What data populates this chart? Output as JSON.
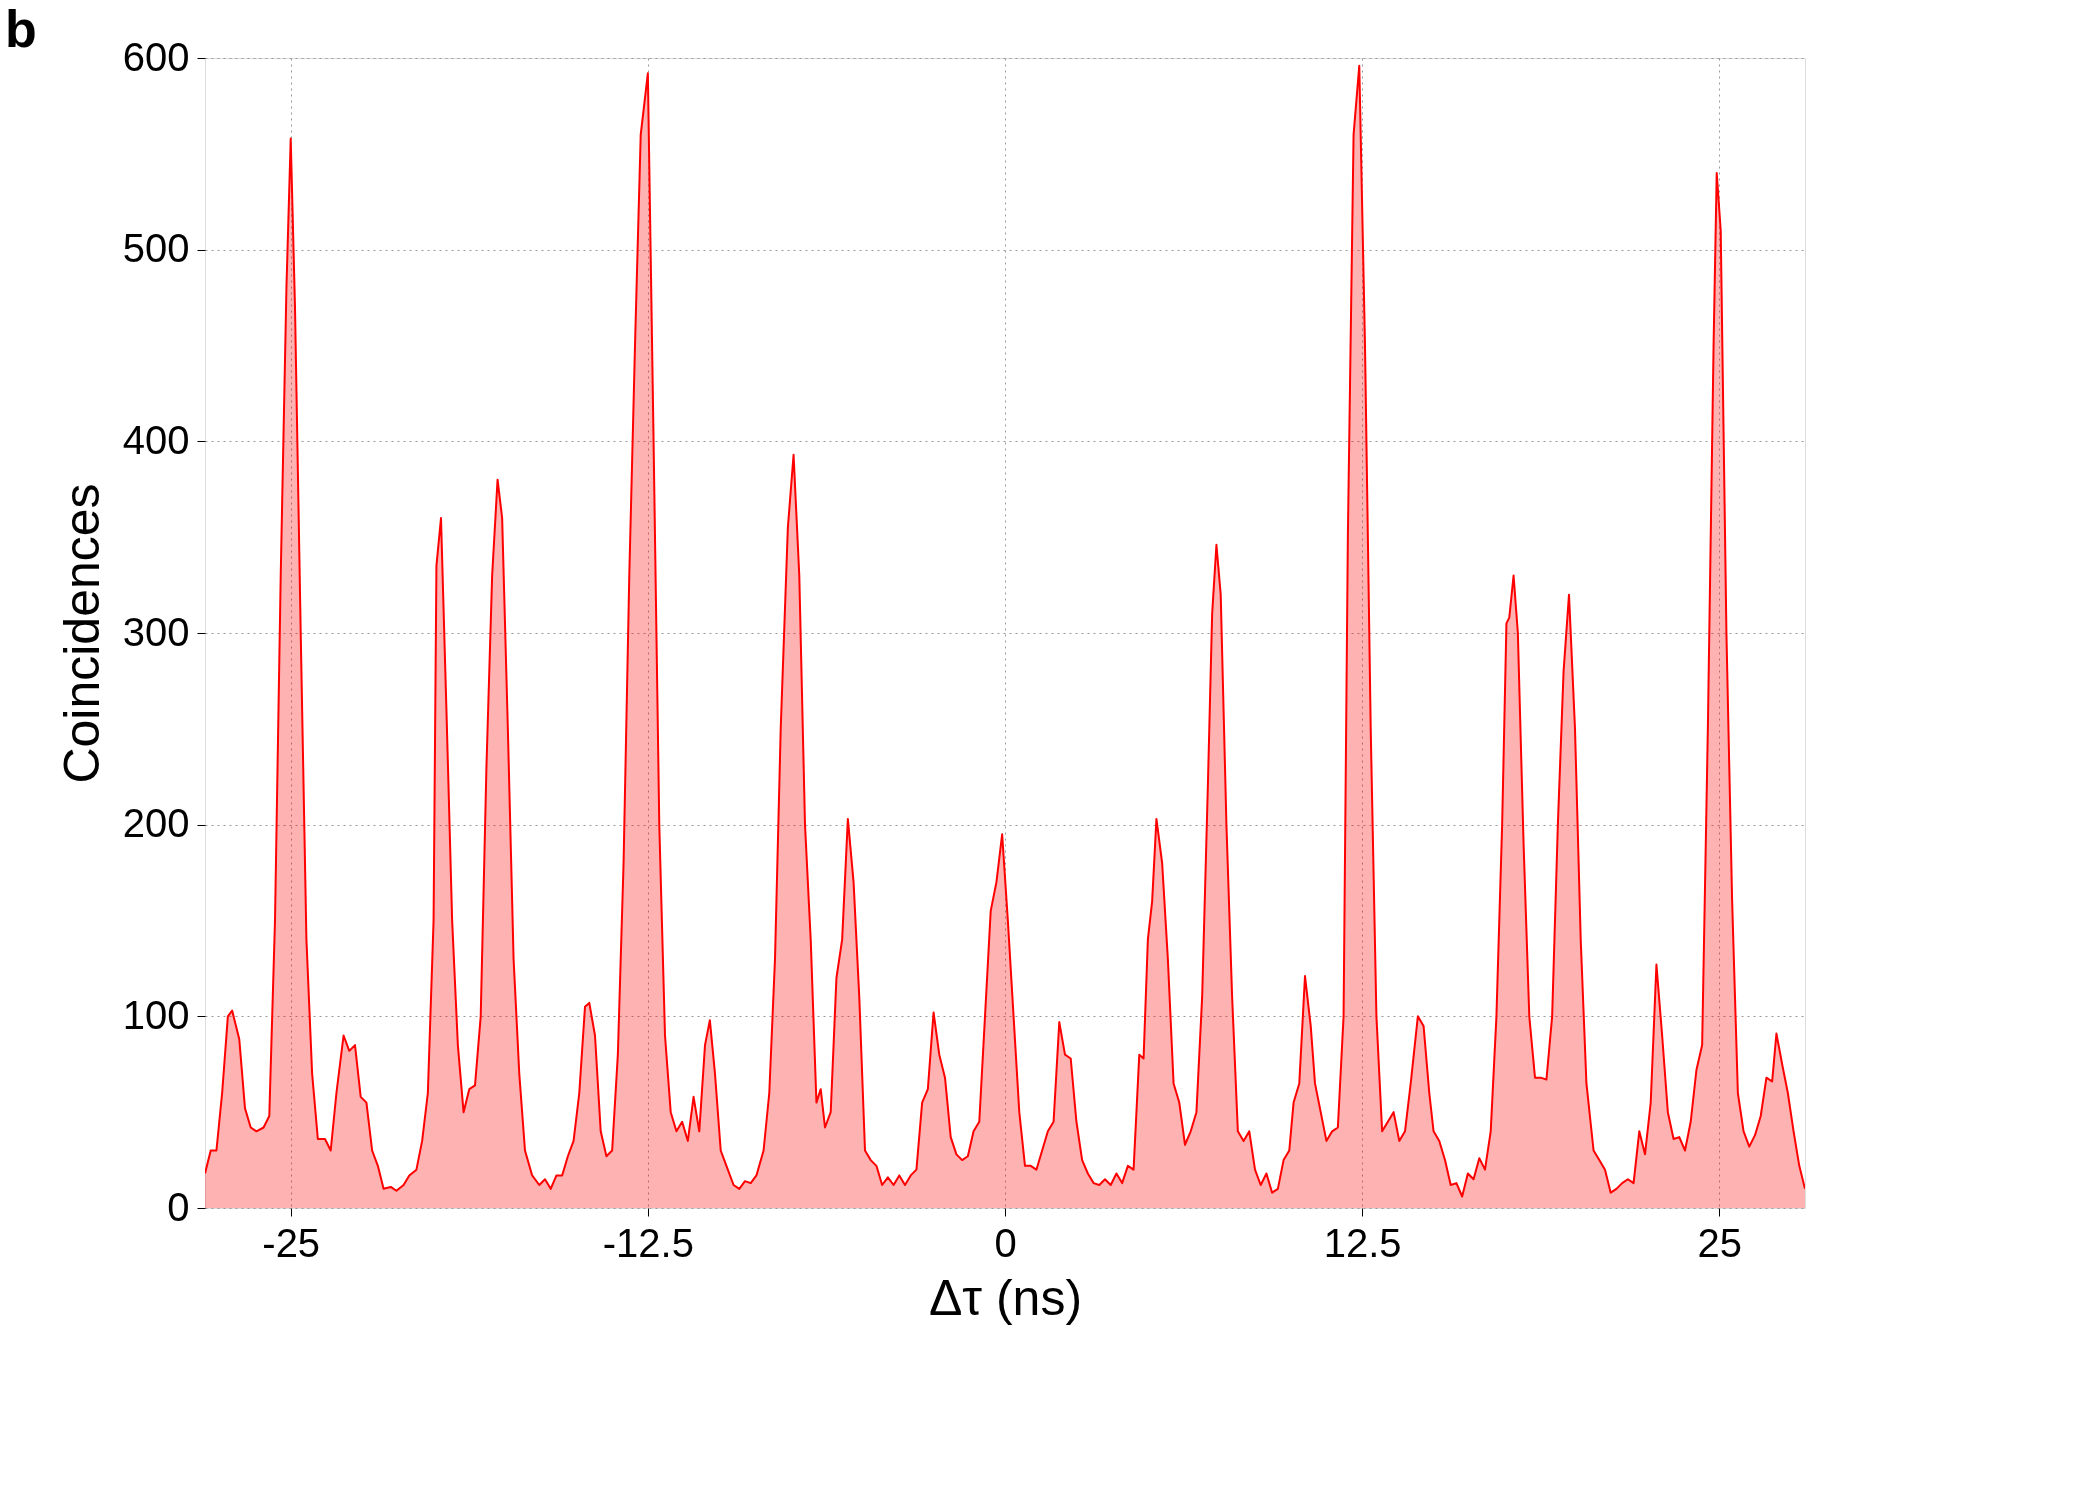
{
  "chart_data": {
    "type": "area",
    "title": "b",
    "xlabel": "Δτ (ns)",
    "ylabel": "Coincidences",
    "xlim": [
      -28,
      28
    ],
    "ylim": [
      0,
      600
    ],
    "xticks": [
      -25,
      -12.5,
      0,
      12.5,
      25
    ],
    "yticks": [
      0,
      100,
      200,
      300,
      400,
      500,
      600
    ],
    "grid": true,
    "series": [
      {
        "color": "#ff0000",
        "x": [
          -28.0,
          -27.8,
          -27.6,
          -27.4,
          -27.2,
          -27.05,
          -26.8,
          -26.6,
          -26.4,
          -26.2,
          -25.95,
          -25.75,
          -25.55,
          -25.35,
          -25.15,
          -25.0,
          -24.85,
          -24.65,
          -24.45,
          -24.25,
          -24.05,
          -23.8,
          -23.6,
          -23.4,
          -23.15,
          -22.95,
          -22.75,
          -22.55,
          -22.35,
          -22.15,
          -21.95,
          -21.75,
          -21.5,
          -21.3,
          -21.05,
          -20.85,
          -20.6,
          -20.4,
          -20.2,
          -20.0,
          -19.9,
          -19.74,
          -19.55,
          -19.35,
          -19.15,
          -18.95,
          -18.75,
          -18.55,
          -18.35,
          -18.15,
          -17.95,
          -17.76,
          -17.6,
          -17.4,
          -17.2,
          -17.0,
          -16.8,
          -16.55,
          -16.3,
          -16.1,
          -15.9,
          -15.7,
          -15.5,
          -15.3,
          -15.1,
          -14.9,
          -14.7,
          -14.55,
          -14.35,
          -14.15,
          -13.95,
          -13.75,
          -13.55,
          -13.35,
          -13.15,
          -12.95,
          -12.75,
          -12.5,
          -12.3,
          -12.1,
          -11.9,
          -11.7,
          -11.5,
          -11.3,
          -11.1,
          -10.9,
          -10.7,
          -10.5,
          -10.33,
          -10.15,
          -9.95,
          -9.75,
          -9.5,
          -9.3,
          -9.1,
          -8.9,
          -8.7,
          -8.45,
          -8.25,
          -8.05,
          -7.85,
          -7.6,
          -7.4,
          -7.2,
          -7.0,
          -6.8,
          -6.6,
          -6.45,
          -6.3,
          -6.1,
          -5.9,
          -5.7,
          -5.5,
          -5.3,
          -5.1,
          -4.9,
          -4.7,
          -4.5,
          -4.3,
          -4.1,
          -3.9,
          -3.7,
          -3.5,
          -3.3,
          -3.1,
          -2.9,
          -2.7,
          -2.5,
          -2.3,
          -2.1,
          -1.9,
          -1.7,
          -1.5,
          -1.3,
          -1.1,
          -0.9,
          -0.7,
          -0.5,
          -0.3,
          -0.1,
          0.1,
          0.3,
          0.5,
          0.7,
          0.9,
          1.1,
          1.3,
          1.5,
          1.7,
          1.9,
          2.1,
          2.3,
          2.5,
          2.7,
          2.9,
          3.1,
          3.3,
          3.5,
          3.7,
          3.9,
          4.1,
          4.3,
          4.5,
          4.7,
          4.85,
          5.0,
          5.15,
          5.3,
          5.5,
          5.7,
          5.9,
          6.1,
          6.3,
          6.5,
          6.7,
          6.9,
          7.1,
          7.25,
          7.4,
          7.55,
          7.75,
          7.95,
          8.15,
          8.35,
          8.55,
          8.75,
          8.95,
          9.15,
          9.35,
          9.55,
          9.75,
          9.95,
          10.1,
          10.3,
          10.5,
          10.7,
          10.85,
          11.05,
          11.25,
          11.45,
          11.65,
          11.85,
          12.0,
          12.2,
          12.4,
          12.6,
          12.8,
          13.0,
          13.2,
          13.4,
          13.6,
          13.8,
          14.0,
          14.2,
          14.45,
          14.65,
          14.85,
          15.0,
          15.2,
          15.4,
          15.6,
          15.8,
          16.0,
          16.2,
          16.4,
          16.6,
          16.8,
          17.0,
          17.2,
          17.4,
          17.55,
          17.65,
          17.8,
          17.95,
          18.15,
          18.35,
          18.55,
          18.75,
          18.95,
          19.15,
          19.35,
          19.55,
          19.74,
          19.95,
          20.15,
          20.35,
          20.6,
          20.8,
          21.0,
          21.2,
          21.4,
          21.6,
          21.8,
          22.0,
          22.2,
          22.4,
          22.6,
          22.8,
          23.0,
          23.2,
          23.4,
          23.6,
          23.8,
          24.0,
          24.2,
          24.4,
          24.6,
          24.8,
          24.91,
          25.05,
          25.25,
          25.45,
          25.65,
          25.85,
          26.05,
          26.25,
          26.45,
          26.65,
          26.85,
          27.0,
          27.2,
          27.4,
          27.6,
          27.8,
          28.0
        ],
        "values": [
          18,
          30,
          30,
          60,
          100,
          103,
          88,
          52,
          42,
          40,
          42,
          48,
          150,
          330,
          480,
          558,
          470,
          300,
          140,
          70,
          36,
          36,
          30,
          60,
          90,
          82,
          85,
          58,
          55,
          30,
          22,
          10,
          11,
          9,
          12,
          17,
          20,
          35,
          60,
          150,
          335,
          360,
          260,
          150,
          85,
          50,
          62,
          64,
          100,
          230,
          330,
          380,
          360,
          250,
          130,
          70,
          30,
          17,
          12,
          15,
          10,
          17,
          17,
          27,
          35,
          60,
          105,
          107,
          90,
          40,
          27,
          30,
          80,
          180,
          330,
          450,
          560,
          592,
          400,
          200,
          90,
          50,
          40,
          45,
          35,
          58,
          40,
          85,
          98,
          70,
          30,
          22,
          12,
          10,
          14,
          13,
          17,
          30,
          60,
          130,
          250,
          355,
          393,
          330,
          200,
          140,
          55,
          62,
          42,
          50,
          120,
          140,
          203,
          170,
          110,
          30,
          25,
          22,
          12,
          16,
          12,
          17,
          12,
          17,
          20,
          55,
          62,
          102,
          80,
          68,
          37,
          28,
          25,
          27,
          40,
          45,
          100,
          155,
          170,
          195,
          150,
          100,
          50,
          22,
          22,
          20,
          30,
          40,
          45,
          97,
          80,
          78,
          45,
          25,
          18,
          13,
          12,
          15,
          12,
          18,
          13,
          22,
          20,
          80,
          78,
          140,
          160,
          203,
          180,
          130,
          65,
          55,
          33,
          40,
          50,
          110,
          220,
          310,
          346,
          320,
          200,
          110,
          40,
          35,
          40,
          20,
          12,
          18,
          8,
          10,
          25,
          30,
          55,
          65,
          121,
          95,
          65,
          50,
          35,
          40,
          42,
          100,
          350,
          560,
          596,
          450,
          250,
          100,
          40,
          45,
          50,
          35,
          40,
          65,
          100,
          95,
          60,
          40,
          35,
          25,
          12,
          13,
          6,
          18,
          15,
          26,
          20,
          40,
          100,
          200,
          305,
          308,
          330,
          300,
          190,
          100,
          68,
          68,
          67,
          100,
          200,
          280,
          320,
          250,
          140,
          65,
          30,
          25,
          20,
          8,
          10,
          13,
          15,
          13,
          40,
          28,
          55,
          127,
          90,
          50,
          36,
          37,
          30,
          45,
          72,
          85,
          250,
          450,
          540,
          510,
          300,
          160,
          60,
          40,
          32,
          38,
          48,
          68,
          66,
          91,
          75,
          60,
          40,
          22,
          10
        ]
      }
    ]
  }
}
